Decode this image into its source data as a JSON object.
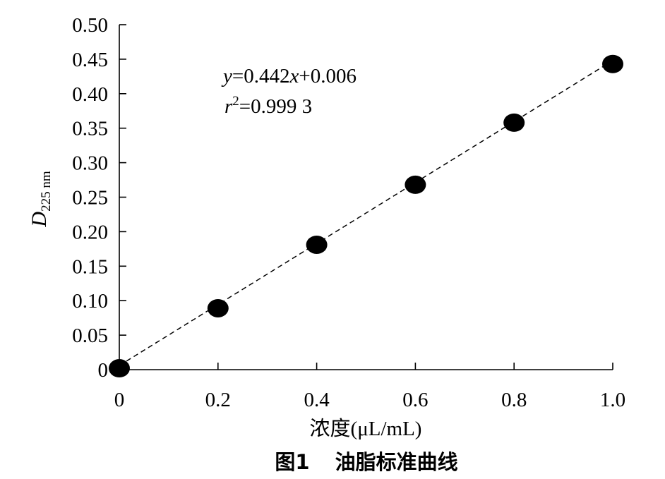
{
  "chart_data": {
    "type": "scatter",
    "x": [
      0,
      0.2,
      0.4,
      0.6,
      0.8,
      1.0
    ],
    "y": [
      0.002,
      0.089,
      0.181,
      0.268,
      0.358,
      0.443
    ],
    "xlim": [
      0,
      1.0
    ],
    "ylim": [
      0,
      0.5
    ],
    "x_ticks": [
      "0",
      "0.2",
      "0.4",
      "0.6",
      "0.8",
      "1.0"
    ],
    "x_tick_values": [
      0,
      0.2,
      0.4,
      0.6,
      0.8,
      1.0
    ],
    "y_ticks": [
      "0",
      "0.05",
      "0.10",
      "0.15",
      "0.20",
      "0.25",
      "0.30",
      "0.35",
      "0.40",
      "0.45",
      "0.50"
    ],
    "y_tick_values": [
      0,
      0.05,
      0.1,
      0.15,
      0.2,
      0.25,
      0.3,
      0.35,
      0.4,
      0.45,
      0.5
    ],
    "xlabel": "浓度(μL/mL)",
    "ylabel_main": "D",
    "ylabel_sub": "225 nm",
    "trendline": {
      "slope": 0.442,
      "intercept": 0.006,
      "style": "dashed"
    },
    "equation": {
      "y": "y",
      "rest": "=0.442",
      "x": "x",
      "tail": "+0.006"
    },
    "r2": {
      "r": "r",
      "sup": "2",
      "rest": "=0.999 3"
    },
    "caption": {
      "figure": "图1",
      "title": "油脂标准曲线"
    },
    "grid": false,
    "legend": "none",
    "marker_color": "#000000"
  }
}
